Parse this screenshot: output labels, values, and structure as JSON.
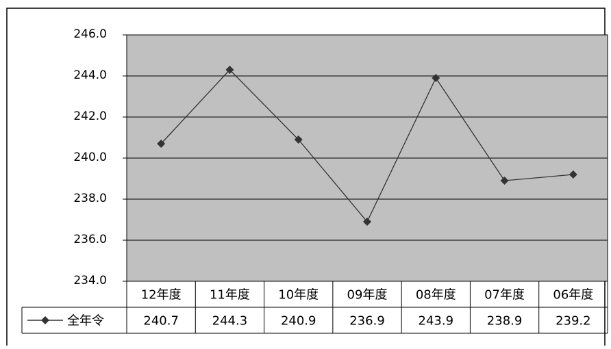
{
  "chart_data": {
    "type": "line",
    "title": "",
    "xlabel": "",
    "ylabel": "",
    "categories": [
      "12年度",
      "11年度",
      "10年度",
      "09年度",
      "08年度",
      "07年度",
      "06年度"
    ],
    "series": [
      {
        "name": "全年令",
        "values": [
          240.7,
          244.3,
          240.9,
          236.9,
          243.9,
          238.9,
          239.2
        ],
        "value_labels": [
          "240.7",
          "244.3",
          "240.9",
          "236.9",
          "243.9",
          "238.9",
          "239.2"
        ],
        "marker": "diamond",
        "color": "#333333"
      }
    ],
    "ylim": [
      234.0,
      246.0
    ],
    "yticks": [
      246.0,
      244.0,
      242.0,
      240.0,
      238.0,
      236.0,
      234.0
    ],
    "ytick_labels": [
      "246.0",
      "244.0",
      "242.0",
      "240.0",
      "238.0",
      "236.0",
      "234.0"
    ],
    "grid": true,
    "plot_background": "#c0c0c0",
    "data_table": true,
    "legend": "data-table-left"
  }
}
